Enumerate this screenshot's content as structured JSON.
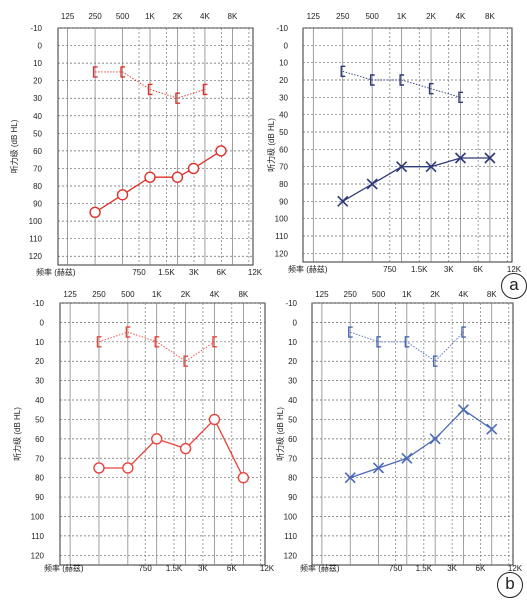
{
  "panel_labels": [
    "a",
    "b"
  ],
  "chart_data": [
    {
      "type": "line",
      "top_x_ticks": [
        "125",
        "250",
        "500",
        "1K",
        "2K",
        "4K",
        "8K"
      ],
      "bottom_x_ticks": [
        "750",
        "1.5K",
        "3K",
        "6K",
        "12K"
      ],
      "xlabel": "频率 (赫兹)",
      "ylabel": "听力级 (dB HL)",
      "y_ticks": [
        "-10",
        "0",
        "10",
        "20",
        "30",
        "40",
        "50",
        "60",
        "70",
        "80",
        "90",
        "100",
        "110",
        "120"
      ],
      "ylim": [
        -10,
        125
      ],
      "y_reversed": true,
      "grid": true,
      "series": [
        {
          "marker": "bracket",
          "x": [
            250,
            500,
            1000,
            2000,
            4000
          ],
          "y": [
            15,
            15,
            25,
            30,
            25
          ],
          "color": "#e0302a"
        },
        {
          "marker": "circle",
          "x": [
            250,
            500,
            1000,
            2000,
            3000,
            6000
          ],
          "y": [
            95,
            85,
            75,
            75,
            70,
            60
          ],
          "color": "#e0302a"
        }
      ]
    },
    {
      "type": "line",
      "top_x_ticks": [
        "125",
        "250",
        "500",
        "1K",
        "2K",
        "4K",
        "8K"
      ],
      "bottom_x_ticks": [
        "750",
        "1.5K",
        "3K",
        "6K",
        "12K"
      ],
      "xlabel": "频率 (赫兹)",
      "ylabel": "听力级 (dB HL)",
      "y_ticks": [
        "-10",
        "0",
        "10",
        "20",
        "30",
        "40",
        "50",
        "60",
        "70",
        "80",
        "90",
        "100",
        "110",
        "120"
      ],
      "ylim": [
        -10,
        125
      ],
      "y_reversed": true,
      "grid": true,
      "series": [
        {
          "marker": "bracket",
          "x": [
            250,
            500,
            1000,
            2000,
            4000
          ],
          "y": [
            15,
            20,
            20,
            25,
            30
          ],
          "color": "#2e3a78"
        },
        {
          "marker": "cross",
          "x": [
            250,
            500,
            1000,
            2000,
            4000,
            8000
          ],
          "y": [
            90,
            80,
            70,
            70,
            65,
            65
          ],
          "color": "#2e3a78"
        }
      ]
    },
    {
      "type": "line",
      "top_x_ticks": [
        "125",
        "250",
        "500",
        "1K",
        "2K",
        "4K",
        "8K"
      ],
      "bottom_x_ticks": [
        "750",
        "1.5K",
        "3K",
        "6K",
        "12K"
      ],
      "xlabel": "频率 (赫兹)",
      "ylabel": "听力级 (dB HL)",
      "y_ticks": [
        "-10",
        "0",
        "10",
        "20",
        "30",
        "40",
        "50",
        "60",
        "70",
        "80",
        "90",
        "100",
        "110",
        "120"
      ],
      "ylim": [
        -10,
        125
      ],
      "y_reversed": true,
      "grid": true,
      "series": [
        {
          "marker": "bracket",
          "x": [
            250,
            500,
            1000,
            2000,
            4000
          ],
          "y": [
            10,
            5,
            10,
            20,
            10
          ],
          "color": "#e8453c"
        },
        {
          "marker": "circle",
          "x": [
            250,
            500,
            1000,
            2000,
            4000,
            8000
          ],
          "y": [
            75,
            75,
            60,
            65,
            50,
            80
          ],
          "color": "#e8453c"
        }
      ]
    },
    {
      "type": "line",
      "top_x_ticks": [
        "125",
        "250",
        "500",
        "1K",
        "2K",
        "4K",
        "8K"
      ],
      "bottom_x_ticks": [
        "750",
        "1.5K",
        "3K",
        "6K",
        "12K"
      ],
      "xlabel": "频率 (赫兹)",
      "ylabel": "听力级 (dB HL)",
      "y_ticks": [
        "-10",
        "0",
        "10",
        "20",
        "30",
        "40",
        "50",
        "60",
        "70",
        "80",
        "90",
        "100",
        "110",
        "120"
      ],
      "ylim": [
        -10,
        125
      ],
      "y_reversed": true,
      "grid": true,
      "series": [
        {
          "marker": "bracket",
          "x": [
            250,
            500,
            1000,
            2000,
            4000
          ],
          "y": [
            5,
            10,
            10,
            20,
            5
          ],
          "color": "#4a6ab8"
        },
        {
          "marker": "cross",
          "x": [
            250,
            500,
            1000,
            2000,
            4000,
            8000
          ],
          "y": [
            80,
            75,
            70,
            60,
            45,
            55
          ],
          "color": "#4a6ab8"
        }
      ]
    }
  ]
}
